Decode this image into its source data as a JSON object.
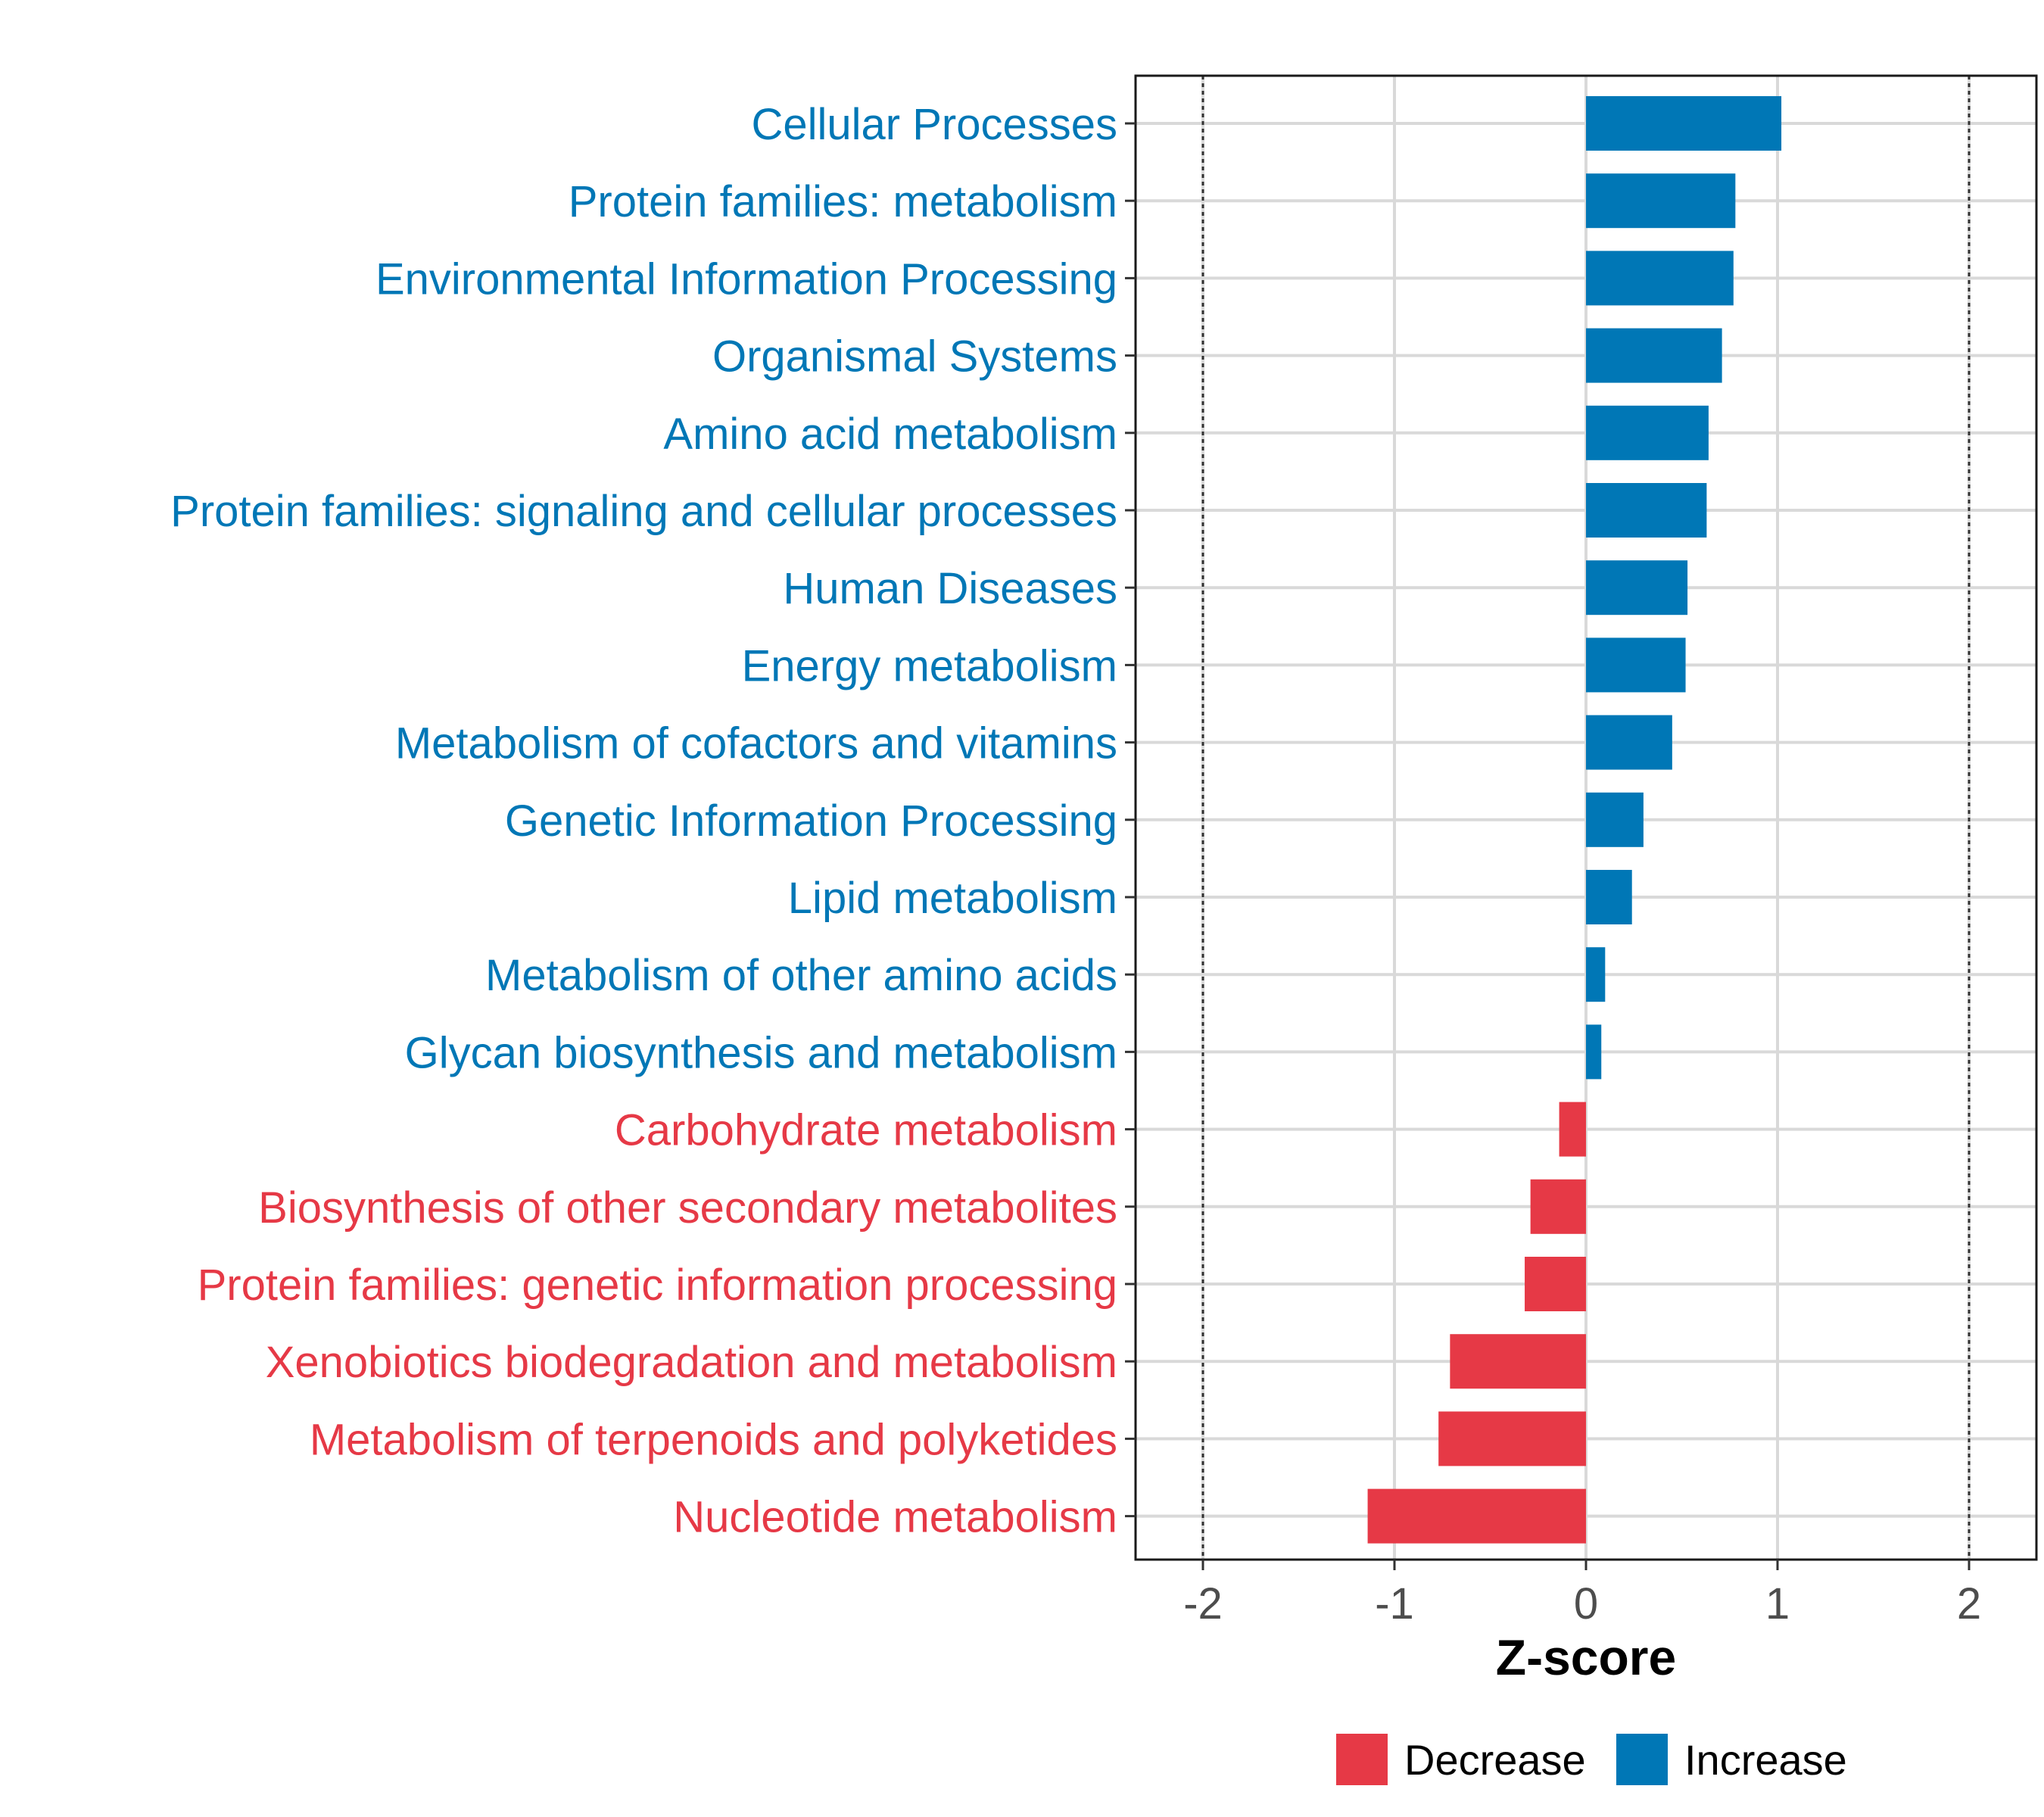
{
  "chart_data": {
    "type": "bar",
    "orientation": "horizontal",
    "xlabel": "Z-score",
    "xlim": [
      -2.35,
      2.35
    ],
    "xticks": [
      -2,
      -1,
      0,
      1,
      2
    ],
    "xtick_labels": [
      "-2",
      "-1",
      "0",
      "1",
      "2"
    ],
    "reference_lines": [
      -2,
      2
    ],
    "grid": true,
    "categories": [
      "Cellular Processes",
      "Protein families: metabolism",
      "Environmental Information Processing",
      "Organismal Systems",
      "Amino acid metabolism",
      "Protein families: signaling and cellular processes",
      "Human Diseases",
      "Energy metabolism",
      "Metabolism of cofactors and vitamins",
      "Genetic Information Processing",
      "Lipid metabolism",
      "Metabolism of other amino acids",
      "Glycan biosynthesis and metabolism",
      "Carbohydrate metabolism",
      "Biosynthesis of other secondary metabolites",
      "Protein families: genetic information processing",
      "Xenobiotics biodegradation and metabolism",
      "Metabolism of terpenoids and polyketides",
      "Nucleotide metabolism"
    ],
    "values": [
      1.02,
      0.78,
      0.77,
      0.71,
      0.64,
      0.63,
      0.53,
      0.52,
      0.45,
      0.3,
      0.24,
      0.1,
      0.08,
      -0.14,
      -0.29,
      -0.32,
      -0.71,
      -0.77,
      -1.14
    ],
    "groups": [
      "Increase",
      "Increase",
      "Increase",
      "Increase",
      "Increase",
      "Increase",
      "Increase",
      "Increase",
      "Increase",
      "Increase",
      "Increase",
      "Increase",
      "Increase",
      "Decrease",
      "Decrease",
      "Decrease",
      "Decrease",
      "Decrease",
      "Decrease"
    ],
    "legend": {
      "placement": "bottom",
      "entries": [
        {
          "name": "Decrease",
          "color": "#e63946"
        },
        {
          "name": "Increase",
          "color": "#0077b6"
        }
      ]
    },
    "colors": {
      "Increase": "#0077b6",
      "Decrease": "#e63946"
    }
  }
}
